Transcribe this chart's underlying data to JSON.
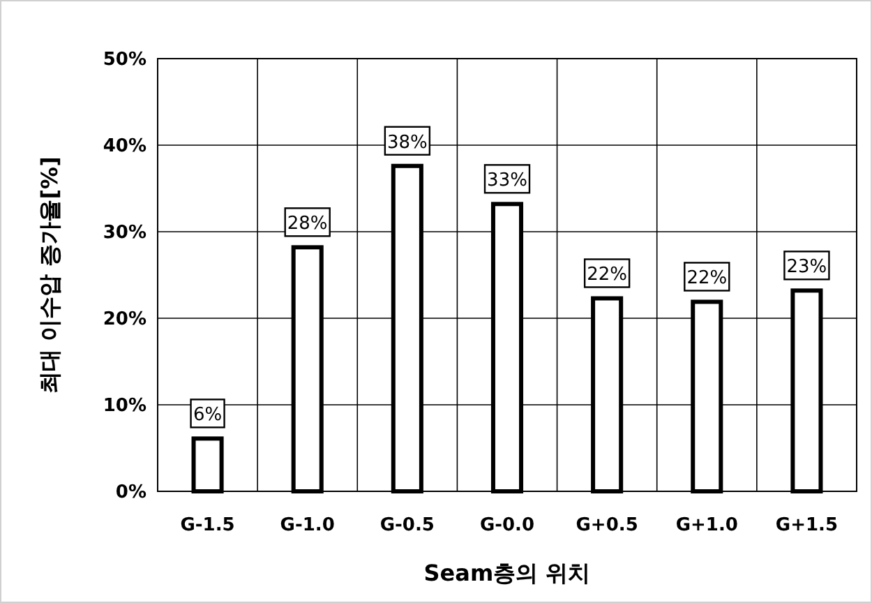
{
  "chart_data": {
    "type": "bar",
    "xlabel": "Seam층의 위치",
    "ylabel": "최대 이수압 증가율[%]",
    "categories": [
      "G-1.5",
      "G-1.0",
      "G-0.5",
      "G-0.0",
      "G+0.5",
      "G+1.0",
      "G+1.5"
    ],
    "values": [
      6.1,
      28.2,
      37.6,
      33.2,
      22.3,
      21.9,
      23.2
    ],
    "value_labels": [
      "6%",
      "28%",
      "38%",
      "33%",
      "22%",
      "22%",
      "23%"
    ],
    "color": "#ffffff",
    "ylim": [
      0,
      50
    ],
    "yticks": [
      {
        "value": 0,
        "label": "0%"
      },
      {
        "value": 10,
        "label": "10%"
      },
      {
        "value": 20,
        "label": "20%"
      },
      {
        "value": 30,
        "label": "30%"
      },
      {
        "value": 40,
        "label": "40%"
      },
      {
        "value": 50,
        "label": "50%"
      }
    ],
    "grid": true
  }
}
